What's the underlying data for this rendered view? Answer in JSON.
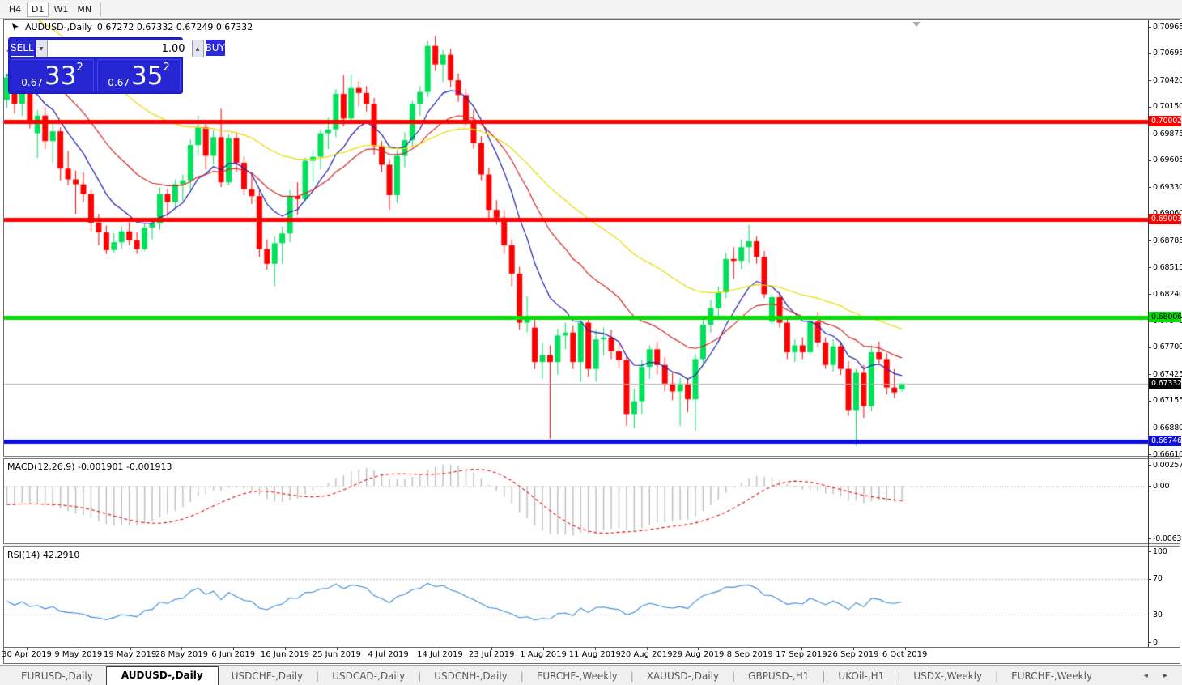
{
  "toolbar": {
    "timeframes": [
      "H4",
      "D1",
      "W1",
      "MN"
    ],
    "active": "D1"
  },
  "chart": {
    "symbol": "AUDUSD-,Daily",
    "ohlc_label": "0.67272 0.67332 0.67249 0.67332",
    "trade_panel": {
      "sell_label": "SELL",
      "buy_label": "BUY",
      "volume": "1.00",
      "sell_small": "0.67",
      "sell_big": "33",
      "sell_sup": "2",
      "buy_small": "0.67",
      "buy_big": "35",
      "buy_sup": "2"
    },
    "price_ticks": [
      "0.70965",
      "0.70695",
      "0.70420",
      "0.70150",
      "0.69875",
      "0.69605",
      "0.69330",
      "0.69060",
      "0.68785",
      "0.68515",
      "0.68240",
      "0.67970",
      "0.67700",
      "0.67425",
      "0.67155",
      "0.66880",
      "0.66610"
    ],
    "hlines": [
      {
        "price": 0.70002,
        "label": "0.70002",
        "color": "#ff0000",
        "text": "#ffffff",
        "thickness": 5
      },
      {
        "price": 0.69003,
        "label": "0.69003",
        "color": "#ff0000",
        "text": "#ffffff",
        "thickness": 5
      },
      {
        "price": 0.68006,
        "label": "0.68006",
        "color": "#00dd00",
        "text": "#000000",
        "thickness": 5
      },
      {
        "price": 0.66746,
        "label": "0.66746",
        "color": "#0d0de0",
        "text": "#ffffff",
        "thickness": 5
      }
    ],
    "current_price": {
      "price": 0.67332,
      "label": "0.67332",
      "color": "#000000",
      "text": "#ffffff"
    },
    "date_labels": [
      "30 Apr 2019",
      "9 May 2019",
      "19 May 2019",
      "28 May 2019",
      "6 Jun 2019",
      "16 Jun 2019",
      "25 Jun 2019",
      "4 Jul 2019",
      "14 Jul 2019",
      "23 Jul 2019",
      "1 Aug 2019",
      "11 Aug 2019",
      "20 Aug 2019",
      "29 Aug 2019",
      "8 Sep 2019",
      "17 Sep 2019",
      "26 Sep 2019",
      "6 Oct 2019"
    ]
  },
  "chart_data": {
    "type": "candlestick",
    "title": "AUDUSD-,Daily",
    "y_axis": {
      "max": 0.71031,
      "min": 0.66594
    },
    "candles": [
      [
        0.7022,
        0.7049,
        0.7014,
        0.7045
      ],
      [
        0.7045,
        0.7048,
        0.7008,
        0.7018
      ],
      [
        0.7018,
        0.704,
        0.7006,
        0.7036
      ],
      [
        0.7036,
        0.7038,
        0.6993,
        0.7001
      ],
      [
        0.6988,
        0.7012,
        0.6963,
        0.7006
      ],
      [
        0.7006,
        0.7014,
        0.6972,
        0.698
      ],
      [
        0.698,
        0.7,
        0.6958,
        0.699
      ],
      [
        0.699,
        0.6994,
        0.694,
        0.6952
      ],
      [
        0.6952,
        0.697,
        0.6935,
        0.6941
      ],
      [
        0.6941,
        0.695,
        0.6906,
        0.6936
      ],
      [
        0.6936,
        0.6948,
        0.6918,
        0.6926
      ],
      [
        0.6926,
        0.6931,
        0.6888,
        0.6897
      ],
      [
        0.6897,
        0.6906,
        0.6874,
        0.6887
      ],
      [
        0.6887,
        0.6894,
        0.6865,
        0.6869
      ],
      [
        0.6869,
        0.6886,
        0.6866,
        0.6877
      ],
      [
        0.6877,
        0.6893,
        0.687,
        0.6888
      ],
      [
        0.6888,
        0.6897,
        0.6874,
        0.6879
      ],
      [
        0.6879,
        0.6887,
        0.6865,
        0.687
      ],
      [
        0.687,
        0.6896,
        0.6868,
        0.6892
      ],
      [
        0.6892,
        0.6901,
        0.688,
        0.6896
      ],
      [
        0.6896,
        0.6933,
        0.689,
        0.6926
      ],
      [
        0.6926,
        0.6931,
        0.6903,
        0.6918
      ],
      [
        0.6918,
        0.6941,
        0.6911,
        0.6936
      ],
      [
        0.6936,
        0.6946,
        0.6919,
        0.694
      ],
      [
        0.694,
        0.6982,
        0.6931,
        0.6976
      ],
      [
        0.6976,
        0.7006,
        0.6965,
        0.6994
      ],
      [
        0.6994,
        0.7001,
        0.6951,
        0.6965
      ],
      [
        0.6965,
        0.6991,
        0.6956,
        0.6984
      ],
      [
        0.6984,
        0.7013,
        0.6933,
        0.6938
      ],
      [
        0.6938,
        0.6987,
        0.6935,
        0.6983
      ],
      [
        0.6983,
        0.6989,
        0.6948,
        0.6958
      ],
      [
        0.6958,
        0.6964,
        0.6925,
        0.6931
      ],
      [
        0.6931,
        0.6946,
        0.6916,
        0.6924
      ],
      [
        0.6924,
        0.693,
        0.6862,
        0.687
      ],
      [
        0.687,
        0.688,
        0.6849,
        0.6855
      ],
      [
        0.6855,
        0.6883,
        0.6832,
        0.6876
      ],
      [
        0.6876,
        0.6893,
        0.6855,
        0.6886
      ],
      [
        0.6886,
        0.693,
        0.6877,
        0.6924
      ],
      [
        0.6924,
        0.6938,
        0.6905,
        0.6921
      ],
      [
        0.6921,
        0.6963,
        0.6918,
        0.696
      ],
      [
        0.696,
        0.6971,
        0.6937,
        0.6964
      ],
      [
        0.6964,
        0.6992,
        0.6951,
        0.6988
      ],
      [
        0.6988,
        0.7004,
        0.6972,
        0.6992
      ],
      [
        0.6992,
        0.7033,
        0.6984,
        0.7028
      ],
      [
        0.7028,
        0.7047,
        0.6995,
        0.7003
      ],
      [
        0.7003,
        0.7048,
        0.6998,
        0.7034
      ],
      [
        0.7034,
        0.7041,
        0.7015,
        0.7029
      ],
      [
        0.7029,
        0.7036,
        0.701,
        0.7018
      ],
      [
        0.7018,
        0.7024,
        0.6966,
        0.6975
      ],
      [
        0.6975,
        0.698,
        0.6948,
        0.6956
      ],
      [
        0.6956,
        0.6962,
        0.691,
        0.6925
      ],
      [
        0.6925,
        0.6971,
        0.6917,
        0.6965
      ],
      [
        0.6965,
        0.6989,
        0.6953,
        0.6981
      ],
      [
        0.6981,
        0.7021,
        0.6975,
        0.7018
      ],
      [
        0.7018,
        0.7036,
        0.7006,
        0.703
      ],
      [
        0.703,
        0.7082,
        0.7025,
        0.7077
      ],
      [
        0.7077,
        0.7087,
        0.7052,
        0.7058
      ],
      [
        0.7058,
        0.7073,
        0.704,
        0.7068
      ],
      [
        0.7068,
        0.7074,
        0.7035,
        0.7042
      ],
      [
        0.7042,
        0.7049,
        0.702,
        0.7027
      ],
      [
        0.7027,
        0.7033,
        0.6995,
        0.7001
      ],
      [
        0.7001,
        0.7012,
        0.6972,
        0.6978
      ],
      [
        0.6978,
        0.6985,
        0.694,
        0.6946
      ],
      [
        0.6946,
        0.6953,
        0.69,
        0.691
      ],
      [
        0.691,
        0.692,
        0.6895,
        0.6902
      ],
      [
        0.6902,
        0.691,
        0.6865,
        0.6874
      ],
      [
        0.6874,
        0.688,
        0.6832,
        0.6845
      ],
      [
        0.6845,
        0.6852,
        0.6788,
        0.6795
      ],
      [
        0.6795,
        0.6822,
        0.6785,
        0.68
      ],
      [
        0.679,
        0.68,
        0.6748,
        0.6755
      ],
      [
        0.6755,
        0.6775,
        0.6738,
        0.6762
      ],
      [
        0.6762,
        0.6772,
        0.6677,
        0.6755
      ],
      [
        0.6755,
        0.6789,
        0.6742,
        0.6782
      ],
      [
        0.6782,
        0.6795,
        0.6768,
        0.6785
      ],
      [
        0.6785,
        0.6792,
        0.6748,
        0.6755
      ],
      [
        0.6755,
        0.6799,
        0.6735,
        0.6795
      ],
      [
        0.6795,
        0.68,
        0.674,
        0.6748
      ],
      [
        0.6748,
        0.6788,
        0.6735,
        0.6778
      ],
      [
        0.6778,
        0.679,
        0.6762,
        0.678
      ],
      [
        0.678,
        0.6788,
        0.6758,
        0.6766
      ],
      [
        0.6766,
        0.6774,
        0.6748,
        0.6757
      ],
      [
        0.6757,
        0.6762,
        0.669,
        0.6702
      ],
      [
        0.6702,
        0.6728,
        0.6688,
        0.6715
      ],
      [
        0.6715,
        0.6757,
        0.6702,
        0.675
      ],
      [
        0.675,
        0.6772,
        0.6738,
        0.6768
      ],
      [
        0.6768,
        0.6776,
        0.6742,
        0.6752
      ],
      [
        0.6752,
        0.676,
        0.6725,
        0.6733
      ],
      [
        0.6733,
        0.6745,
        0.6716,
        0.6725
      ],
      [
        0.6725,
        0.6739,
        0.669,
        0.6733
      ],
      [
        0.6733,
        0.6738,
        0.6704,
        0.6717
      ],
      [
        0.6717,
        0.6763,
        0.6685,
        0.6758
      ],
      [
        0.6758,
        0.68,
        0.6752,
        0.6793
      ],
      [
        0.6793,
        0.6818,
        0.6785,
        0.681
      ],
      [
        0.681,
        0.6832,
        0.6802,
        0.6826
      ],
      [
        0.6826,
        0.6866,
        0.682,
        0.686
      ],
      [
        0.686,
        0.6872,
        0.684,
        0.6858
      ],
      [
        0.6858,
        0.688,
        0.685,
        0.6872
      ],
      [
        0.6872,
        0.6895,
        0.6856,
        0.6878
      ],
      [
        0.6878,
        0.6883,
        0.6855,
        0.6862
      ],
      [
        0.6862,
        0.6868,
        0.682,
        0.6824
      ],
      [
        0.6796,
        0.6825,
        0.6792,
        0.6821
      ],
      [
        0.6821,
        0.6826,
        0.679,
        0.6795
      ],
      [
        0.6795,
        0.68,
        0.6758,
        0.6765
      ],
      [
        0.6765,
        0.6778,
        0.6755,
        0.6772
      ],
      [
        0.6772,
        0.678,
        0.6758,
        0.6765
      ],
      [
        0.6765,
        0.68,
        0.6762,
        0.6796
      ],
      [
        0.6796,
        0.6806,
        0.677,
        0.6775
      ],
      [
        0.6775,
        0.678,
        0.6748,
        0.6752
      ],
      [
        0.6752,
        0.6778,
        0.6745,
        0.6771
      ],
      [
        0.6771,
        0.6776,
        0.6742,
        0.6748
      ],
      [
        0.6748,
        0.6756,
        0.67,
        0.6706
      ],
      [
        0.6706,
        0.6748,
        0.667,
        0.6744
      ],
      [
        0.6744,
        0.6752,
        0.6698,
        0.671
      ],
      [
        0.671,
        0.6772,
        0.6705,
        0.6765
      ],
      [
        0.6765,
        0.6776,
        0.6752,
        0.6758
      ],
      [
        0.6758,
        0.6764,
        0.6722,
        0.6729
      ],
      [
        0.6729,
        0.6748,
        0.6718,
        0.6724
      ],
      [
        0.6727,
        0.6733,
        0.6725,
        0.6733
      ]
    ],
    "moving_averages": [
      {
        "name": "fast-ma",
        "period": 9,
        "seed": 0.7048,
        "color": "#1c1cb0"
      },
      {
        "name": "mid-ma",
        "period": 21,
        "seed": 0.7075,
        "color": "#d42424"
      },
      {
        "name": "slow-ma",
        "period": 45,
        "seed": 0.7125,
        "color": "#e9da00"
      }
    ],
    "indicators": [
      {
        "name": "MACD",
        "label": "MACD(12,26,9) -0.001901 -0.001913",
        "fast": 12,
        "slow": 26,
        "signal": 9,
        "seed_fast": 0.7035,
        "seed_slow": 0.706,
        "scale_max": 0.002574,
        "scale_min": -0.00632,
        "ticks": [
          {
            "label": "0.002574",
            "value": 0.002574
          },
          {
            "label": "0.00",
            "value": 0
          },
          {
            "label": "-0.006320",
            "value": -0.00632
          }
        ],
        "hist_color": "#bdbdbd",
        "signal_color": "#e01010"
      },
      {
        "name": "RSI",
        "label": "RSI(14) 42.2910",
        "period": 14,
        "seed_gain": 0.0009,
        "seed_loss": 0.0011,
        "ticks": [
          {
            "label": "100",
            "value": 100
          },
          {
            "label": "70",
            "value": 70
          },
          {
            "label": "30",
            "value": 30
          },
          {
            "label": "0",
            "value": 0
          }
        ],
        "levels": [
          70,
          30
        ],
        "line_color": "#3a8ad6"
      }
    ],
    "colors": {
      "bull": "#00e05a",
      "bear": "#ff0000",
      "level_dotted": "#b4b4b4",
      "current_line": "#b4b4b4"
    }
  },
  "tabs": {
    "items": [
      "EURUSD-,Daily",
      "AUDUSD-,Daily",
      "USDCHF-,Daily",
      "USDCAD-,Daily",
      "USDCNH-,Daily",
      "EURCHF-,Weekly",
      "XAUUSD-,Daily",
      "GBPUSD-,H1",
      "UKOil-,H1",
      "USDX-,Weekly",
      "EURCHF-,Weekly"
    ],
    "active_index": 1,
    "scroll_left_icon": "◂",
    "scroll_right_icon": "▸"
  }
}
